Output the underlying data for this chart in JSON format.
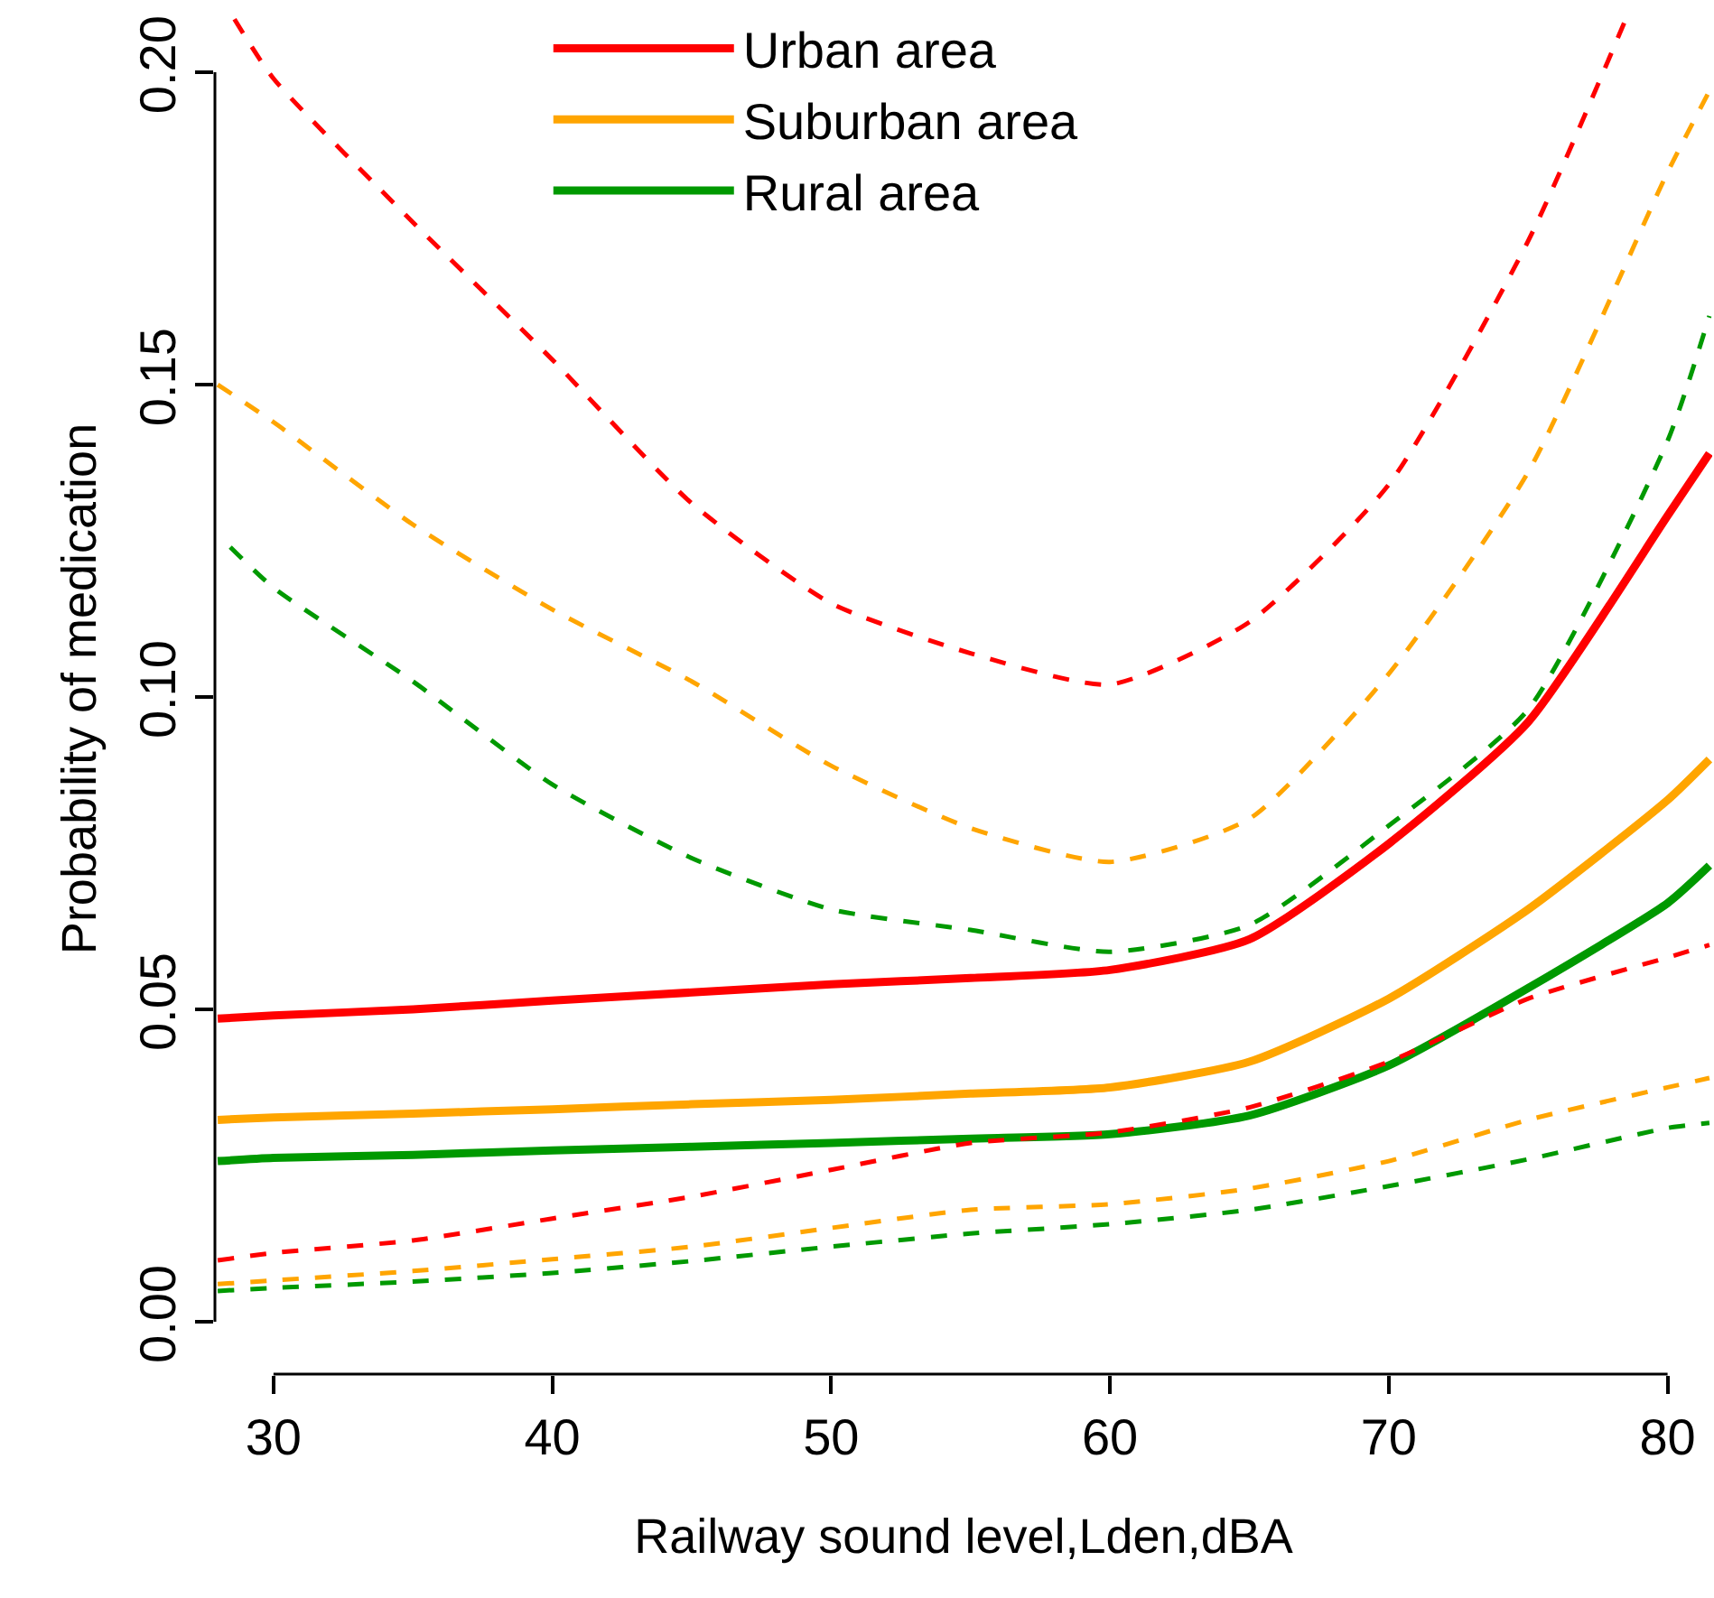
{
  "chart_data": {
    "type": "line",
    "xlabel": "Railway sound level,Lden,dBA",
    "ylabel": "Probability of medication",
    "xlim": [
      27.9,
      81.6
    ],
    "ylim": [
      -0.0084,
      0.211
    ],
    "xticks": [
      30,
      40,
      50,
      60,
      70,
      80
    ],
    "yticks": [
      {
        "value": 0,
        "label": "0.00"
      },
      {
        "value": 0.05,
        "label": "0.05"
      },
      {
        "value": 0.1,
        "label": "0.10"
      },
      {
        "value": 0.15,
        "label": "0.15"
      },
      {
        "value": 0.2,
        "label": "0.20"
      }
    ],
    "legend": "top",
    "line_style": "solid",
    "marker": "none",
    "x": [
      28,
      30,
      35,
      40,
      45,
      50,
      55,
      60,
      65,
      70,
      75,
      80,
      81.5
    ],
    "series": [
      {
        "name": "Urban area",
        "color": "#ff0000",
        "values": [
          0.0485,
          0.049,
          0.05,
          0.0514,
          0.0527,
          0.054,
          0.055,
          0.0563,
          0.0612,
          0.0765,
          0.096,
          0.129,
          0.139
        ]
      },
      {
        "name": "Suburban area",
        "color": "#ffa500",
        "values": [
          0.0323,
          0.0327,
          0.0333,
          0.034,
          0.0348,
          0.0355,
          0.0365,
          0.0375,
          0.0416,
          0.0517,
          0.066,
          0.0835,
          0.09
        ]
      },
      {
        "name": "Rural area",
        "color": "#009900",
        "values": [
          0.0257,
          0.0262,
          0.0267,
          0.0274,
          0.028,
          0.0286,
          0.0293,
          0.03,
          0.033,
          0.041,
          0.0534,
          0.067,
          0.073
        ]
      },
      {
        "color": "#ff0000",
        "line_style": "dashed",
        "values": [
          0.0098,
          0.011,
          0.013,
          0.0165,
          0.02,
          0.0243,
          0.0286,
          0.0303,
          0.0343,
          0.0416,
          0.0517,
          0.0583,
          0.0603
        ]
      },
      {
        "color": "#ff0000",
        "line_style": "dashed",
        "x": [
          28.6,
          30,
          35,
          40,
          45,
          50,
          55,
          60,
          65,
          70,
          75,
          78.5
        ],
        "values": [
          0.2085,
          0.199,
          0.176,
          0.154,
          0.131,
          0.115,
          0.107,
          0.102,
          0.112,
          0.134,
          0.173,
          0.2085
        ]
      },
      {
        "color": "#ffa500",
        "line_style": "dashed",
        "values": [
          0.006,
          0.0066,
          0.0081,
          0.01,
          0.012,
          0.015,
          0.0179,
          0.0188,
          0.0213,
          0.0257,
          0.0323,
          0.0375,
          0.039
        ]
      },
      {
        "color": "#ffa500",
        "line_style": "dashed",
        "values": [
          0.15,
          0.144,
          0.1276,
          0.114,
          0.1025,
          0.089,
          0.079,
          0.0736,
          0.0805,
          0.1037,
          0.136,
          0.184,
          0.197
        ]
      },
      {
        "color": "#009900",
        "line_style": "dashed",
        "values": [
          0.0049,
          0.0054,
          0.0064,
          0.0078,
          0.0097,
          0.012,
          0.0141,
          0.0156,
          0.0179,
          0.0217,
          0.026,
          0.031,
          0.0318
        ]
      },
      {
        "color": "#009900",
        "line_style": "dashed",
        "x": [
          28.45,
          30,
          35,
          40,
          45,
          50,
          55,
          60,
          65,
          70,
          75,
          80,
          81.5
        ],
        "values": [
          0.124,
          0.1175,
          0.1025,
          0.086,
          0.0742,
          0.066,
          0.0627,
          0.0592,
          0.0635,
          0.0794,
          0.098,
          0.141,
          0.161
        ]
      }
    ]
  }
}
